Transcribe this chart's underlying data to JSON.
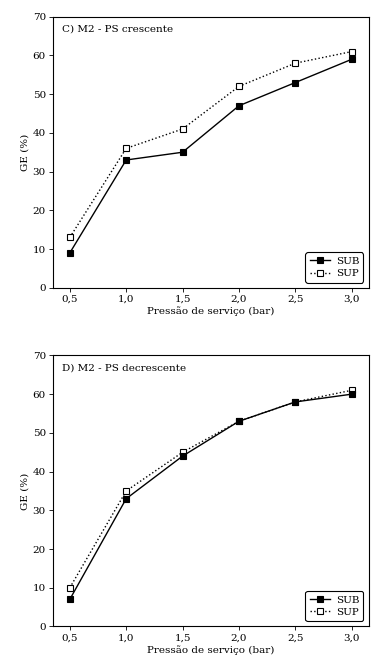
{
  "x": [
    0.5,
    1.0,
    1.5,
    2.0,
    2.5,
    3.0
  ],
  "C_SUB": [
    9,
    33,
    35,
    47,
    53,
    59
  ],
  "C_SUP": [
    13,
    36,
    41,
    52,
    58,
    61
  ],
  "D_SUB": [
    7,
    33,
    44,
    53,
    58,
    60
  ],
  "D_SUP": [
    10,
    35,
    45,
    53,
    58,
    61
  ],
  "title_C": "C) M2 - PS crescente",
  "title_D": "D) M2 - PS decrescente",
  "ylabel": "GE (%)",
  "xlabel": "Pressão de serviço (bar)",
  "ylim": [
    0,
    70
  ],
  "yticks": [
    0,
    10,
    20,
    30,
    40,
    50,
    60,
    70
  ],
  "xticks": [
    0.5,
    1.0,
    1.5,
    2.0,
    2.5,
    3.0
  ],
  "xtick_labels": [
    "0,5",
    "1,0",
    "1,5",
    "2,0",
    "2,5",
    "3,0"
  ],
  "color_line": "#000000",
  "legend_SUB": "SUB",
  "legend_SUP": "SUP",
  "bg_color": "#ffffff",
  "font_size": 7.5,
  "title_font_size": 7.5,
  "marker_size": 5,
  "linewidth": 1.0
}
